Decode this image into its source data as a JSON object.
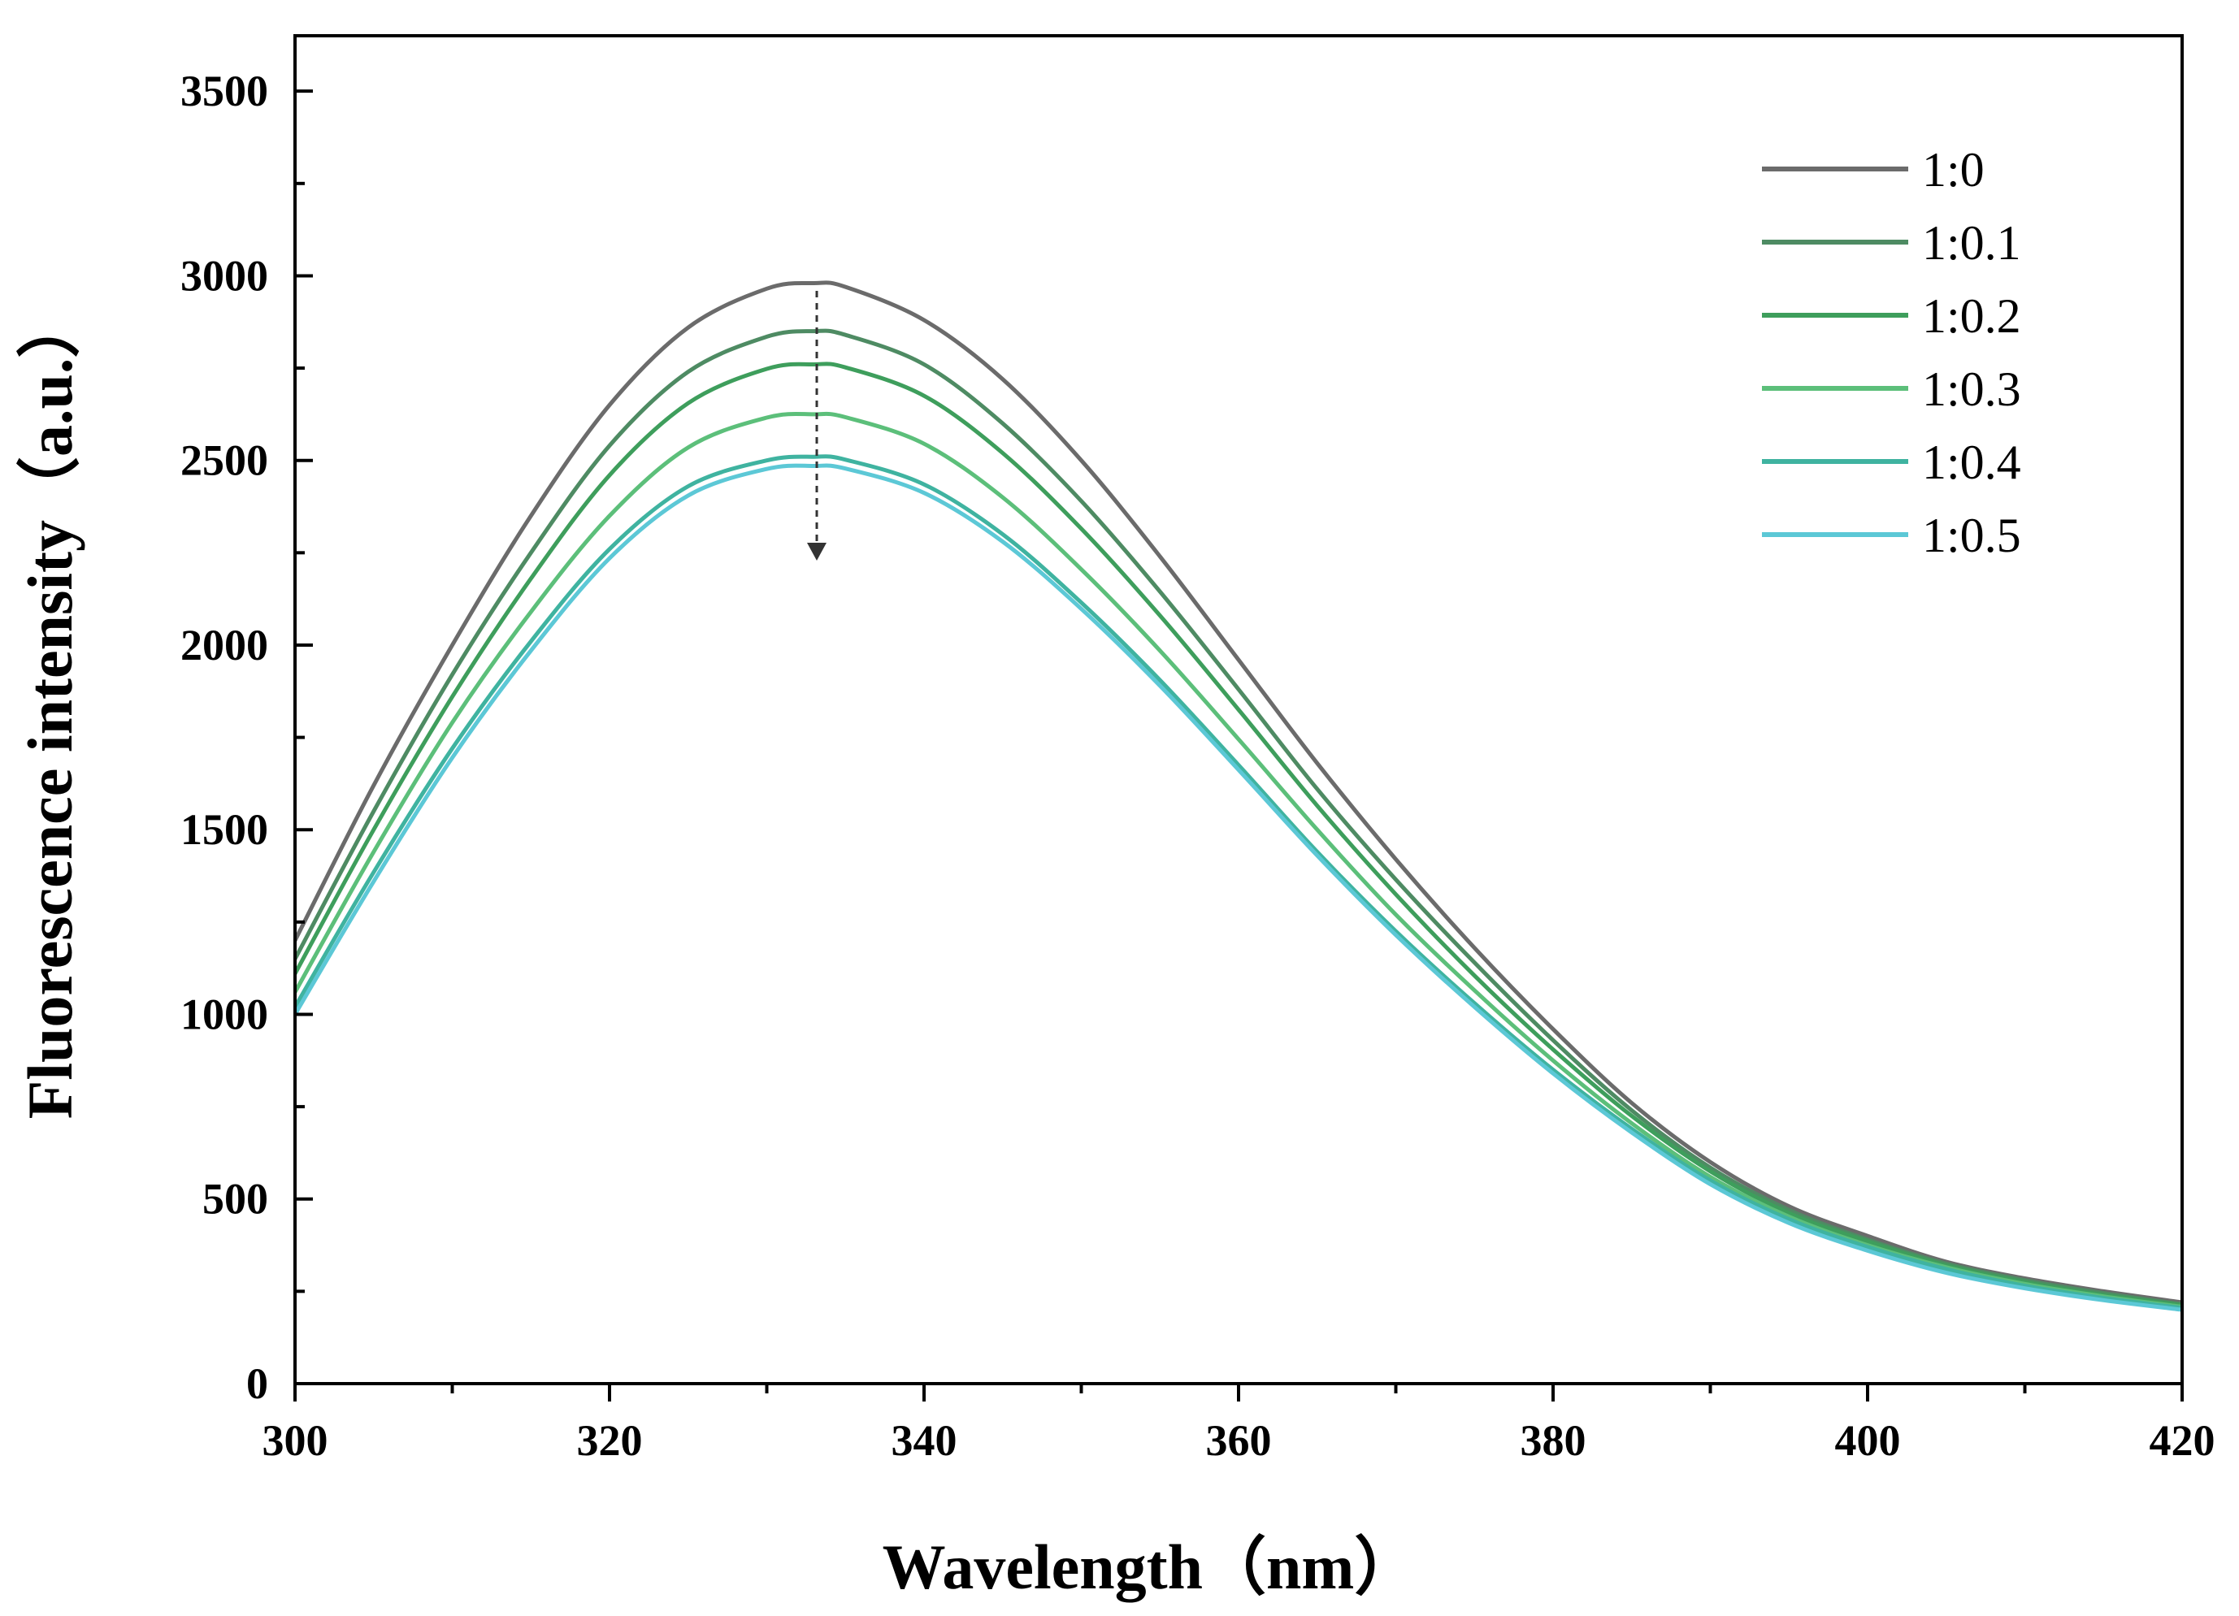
{
  "chart_data": {
    "type": "line",
    "title": "",
    "xlabel": "Wavelength（nm）",
    "ylabel": "Fluorescence intensity（a.u.）",
    "xlim": [
      300,
      420
    ],
    "ylim": [
      0,
      3650
    ],
    "x_ticks": [
      300,
      320,
      340,
      360,
      380,
      400,
      420
    ],
    "y_ticks": [
      0,
      500,
      1000,
      1500,
      2000,
      2500,
      3000,
      3500
    ],
    "legend_position": "top-right",
    "x": [
      300,
      305,
      310,
      315,
      320,
      325,
      330,
      333,
      335,
      340,
      345,
      350,
      355,
      360,
      365,
      370,
      375,
      380,
      385,
      390,
      395,
      400,
      405,
      410,
      415,
      420
    ],
    "series": [
      {
        "name": "1:0",
        "color": "#6b6b6b",
        "values": [
          1200,
          1620,
          2000,
          2350,
          2650,
          2860,
          2965,
          2980,
          2970,
          2880,
          2720,
          2500,
          2240,
          1960,
          1680,
          1420,
          1180,
          960,
          760,
          600,
          480,
          400,
          330,
          285,
          250,
          220
        ]
      },
      {
        "name": "1:0.1",
        "color": "#4e8b63",
        "values": [
          1150,
          1550,
          1920,
          2250,
          2540,
          2740,
          2835,
          2850,
          2840,
          2760,
          2600,
          2390,
          2145,
          1880,
          1610,
          1365,
          1140,
          930,
          740,
          585,
          470,
          390,
          325,
          280,
          245,
          215
        ]
      },
      {
        "name": "1:0.2",
        "color": "#3e9e5c",
        "values": [
          1110,
          1500,
          1860,
          2180,
          2460,
          2655,
          2748,
          2760,
          2752,
          2675,
          2520,
          2315,
          2080,
          1825,
          1565,
          1325,
          1105,
          905,
          725,
          575,
          462,
          385,
          320,
          275,
          240,
          212
        ]
      },
      {
        "name": "1:0.3",
        "color": "#5cbf7a",
        "values": [
          1060,
          1440,
          1790,
          2090,
          2350,
          2535,
          2616,
          2625,
          2617,
          2545,
          2400,
          2205,
          1985,
          1745,
          1500,
          1270,
          1065,
          875,
          705,
          560,
          452,
          375,
          315,
          270,
          236,
          208
        ]
      },
      {
        "name": "1:0.4",
        "color": "#3fb3a0",
        "values": [
          1020,
          1385,
          1720,
          2010,
          2260,
          2430,
          2500,
          2510,
          2502,
          2435,
          2300,
          2115,
          1905,
          1675,
          1440,
          1225,
          1030,
          850,
          690,
          550,
          445,
          370,
          310,
          265,
          232,
          205
        ]
      },
      {
        "name": "1:0.5",
        "color": "#5cc8d6",
        "values": [
          1000,
          1360,
          1695,
          1985,
          2235,
          2405,
          2477,
          2485,
          2478,
          2412,
          2280,
          2098,
          1890,
          1662,
          1430,
          1215,
          1020,
          840,
          680,
          540,
          435,
          360,
          300,
          258,
          226,
          200
        ]
      }
    ]
  }
}
